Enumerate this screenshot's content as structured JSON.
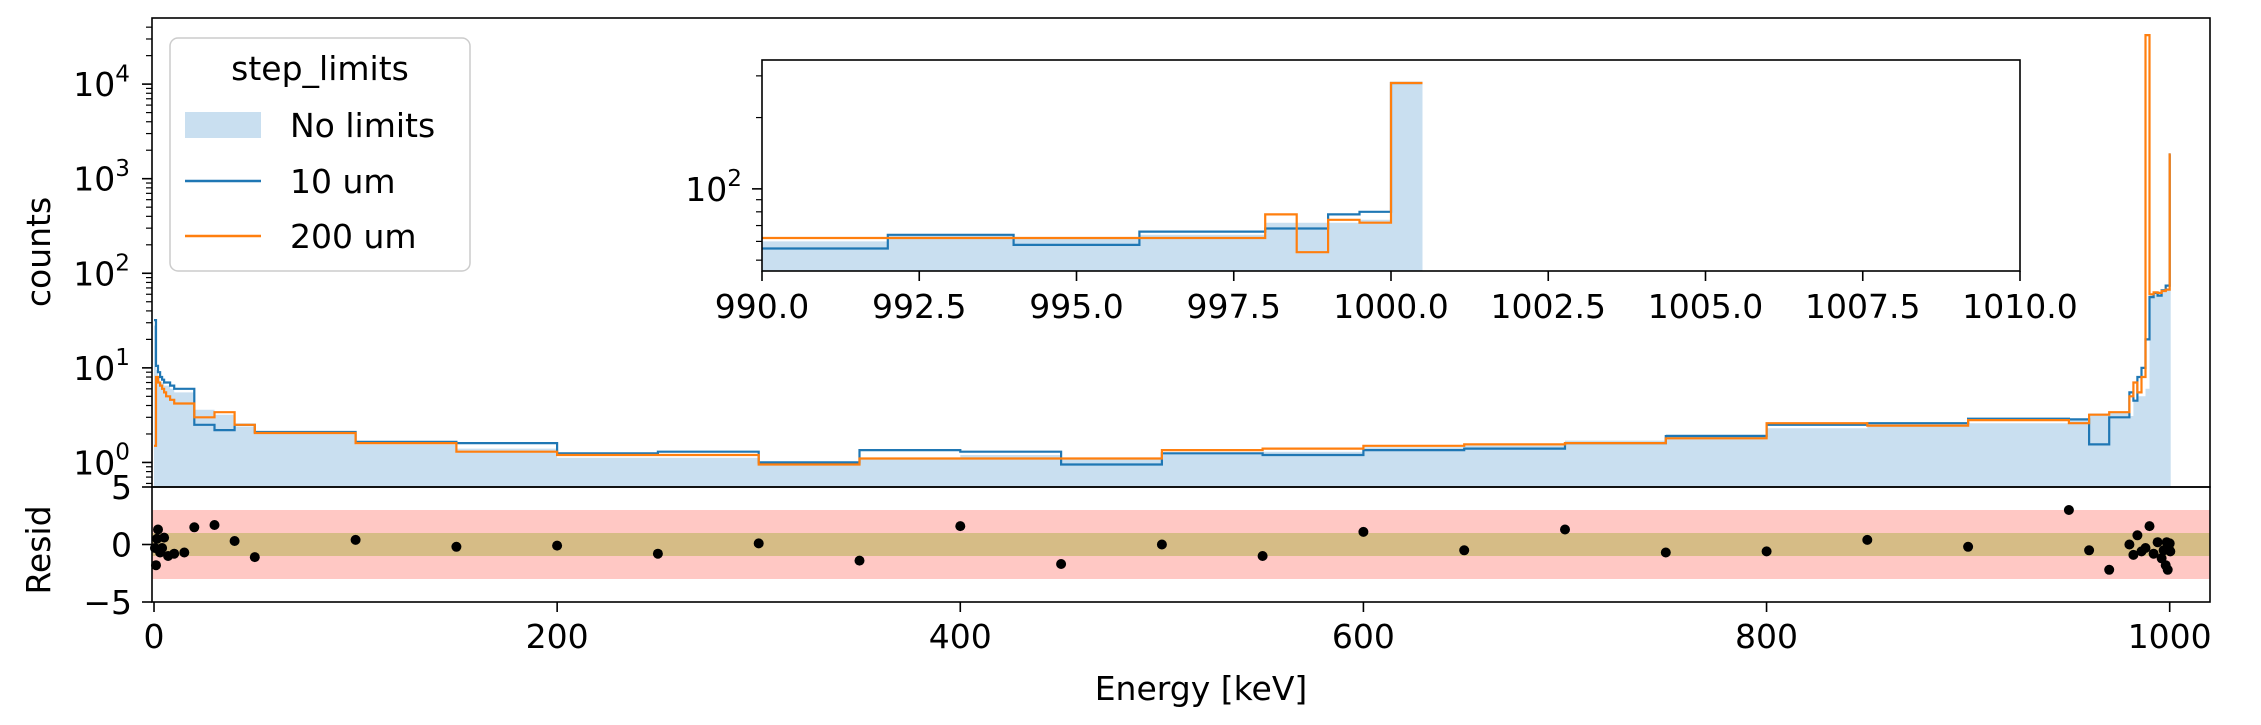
{
  "colors": {
    "no_limits_fill": "#c9dff0",
    "series_10um": "#1f77b4",
    "series_200um": "#ff7f0e",
    "band_2sigma": "#ffc8c4",
    "band_1sigma": "#d6bc86",
    "points": "#000000"
  },
  "chart_data": [
    {
      "type": "histogram",
      "panel": "main",
      "ylabel": "counts",
      "yscale": "log",
      "ylim": [
        0.55,
        50000
      ],
      "xlim": [
        -1,
        1020
      ],
      "yticks": [
        {
          "value": 1,
          "base": "10",
          "exp": "0"
        },
        {
          "value": 10,
          "base": "10",
          "exp": "1"
        },
        {
          "value": 100,
          "base": "10",
          "exp": "2"
        },
        {
          "value": 1000,
          "base": "10",
          "exp": "3"
        },
        {
          "value": 10000,
          "base": "10",
          "exp": "4"
        }
      ],
      "legend": {
        "title": "step_limits",
        "position": "top-left",
        "entries": [
          {
            "label": "No limits",
            "kind": "patch",
            "color": "#c9dff0"
          },
          {
            "label": "10 um",
            "kind": "line",
            "color": "#1f77b4"
          },
          {
            "label": "200 um",
            "kind": "line",
            "color": "#ff7f0e"
          }
        ]
      },
      "series": [
        {
          "name": "No limits",
          "style": "fill",
          "edges": [
            0,
            1,
            2,
            3,
            4,
            5,
            6,
            8,
            10,
            20,
            30,
            40,
            50,
            100,
            150,
            200,
            250,
            300,
            350,
            400,
            450,
            500,
            550,
            600,
            650,
            700,
            750,
            800,
            850,
            900,
            950,
            960,
            970,
            980,
            982,
            984,
            986,
            988,
            990,
            992,
            994,
            996,
            998,
            1000,
            1000.5
          ],
          "values": [
            28,
            9.5,
            8,
            7,
            7,
            6.5,
            6.5,
            6,
            5.5,
            3.6,
            3.2,
            2.4,
            2.0,
            1.55,
            1.4,
            1.12,
            1.12,
            0.95,
            1.1,
            1.2,
            1.12,
            1.25,
            1.3,
            1.45,
            1.5,
            1.7,
            2.0,
            2.3,
            2.5,
            2.6,
            2.9,
            3.3,
            3.4,
            3.1,
            4.5,
            5,
            5,
            6,
            60,
            64,
            62,
            68,
            70,
            1800
          ]
        },
        {
          "name": "10 um",
          "style": "step",
          "edges": [
            0,
            1,
            2,
            3,
            4,
            5,
            6,
            8,
            10,
            20,
            30,
            40,
            50,
            100,
            150,
            200,
            250,
            300,
            350,
            400,
            450,
            500,
            550,
            600,
            650,
            700,
            750,
            800,
            850,
            900,
            950,
            960,
            970,
            980,
            982,
            984,
            986,
            988,
            990,
            992,
            994,
            996,
            998,
            1000,
            1000.5
          ],
          "values": [
            32,
            10.5,
            9,
            8,
            7.5,
            7,
            7,
            6.5,
            6,
            2.5,
            2.2,
            2.5,
            2.1,
            1.65,
            1.6,
            1.25,
            1.3,
            1.0,
            1.35,
            1.3,
            0.95,
            1.25,
            1.2,
            1.35,
            1.4,
            1.6,
            1.9,
            2.5,
            2.6,
            2.9,
            2.85,
            1.55,
            3.0,
            5.5,
            4.5,
            8,
            10,
            20,
            56,
            62,
            58,
            66,
            74,
            1800
          ]
        },
        {
          "name": "200 um",
          "style": "step",
          "edges": [
            0,
            1,
            2,
            3,
            4,
            5,
            6,
            8,
            10,
            20,
            30,
            40,
            50,
            100,
            150,
            200,
            250,
            300,
            350,
            400,
            450,
            500,
            550,
            600,
            650,
            700,
            750,
            800,
            850,
            900,
            950,
            960,
            970,
            980,
            982,
            984,
            986,
            988,
            990,
            992,
            994,
            996,
            998,
            1000,
            1000.5
          ],
          "values": [
            1.5,
            8,
            7,
            6.5,
            6,
            5.5,
            5,
            4.6,
            4.2,
            3.0,
            3.4,
            2.5,
            2.05,
            1.6,
            1.3,
            1.2,
            1.2,
            0.95,
            1.1,
            1.1,
            1.1,
            1.35,
            1.4,
            1.5,
            1.55,
            1.6,
            1.8,
            2.6,
            2.45,
            2.8,
            2.6,
            3.2,
            3.4,
            5.0,
            7.0,
            5.5,
            8,
            33000,
            60,
            63,
            62,
            65,
            67,
            1800
          ]
        }
      ]
    },
    {
      "type": "histogram",
      "panel": "inset",
      "yscale": "log",
      "xlim": [
        990,
        1010
      ],
      "ylim": [
        45,
        350
      ],
      "xticks": [
        990.0,
        992.5,
        995.0,
        997.5,
        1000.0,
        1002.5,
        1005.0,
        1007.5,
        1010.0
      ],
      "xtick_labels": [
        "990.0",
        "992.5",
        "995.0",
        "997.5",
        "1000.0",
        "1002.5",
        "1005.0",
        "1007.5",
        "1010.0"
      ],
      "yticks": [
        {
          "value": 100,
          "base": "10",
          "exp": "2"
        }
      ],
      "series": [
        {
          "name": "No limits",
          "style": "fill",
          "edges": [
            990,
            992,
            994,
            996,
            998,
            998.5,
            999,
            999.5,
            1000,
            1000.5
          ],
          "values": [
            60,
            64,
            62,
            64,
            72,
            72,
            72,
            74,
            280
          ]
        },
        {
          "name": "10 um",
          "style": "step",
          "edges": [
            990,
            992,
            994,
            996,
            998,
            998.5,
            999,
            999.5,
            1000,
            1000.5
          ],
          "values": [
            56,
            64,
            58,
            66,
            68,
            68,
            78,
            80,
            280
          ]
        },
        {
          "name": "200 um",
          "style": "step",
          "edges": [
            990,
            992,
            994,
            996,
            998,
            998.5,
            999,
            999.5,
            1000,
            1000.5
          ],
          "values": [
            62,
            62,
            62,
            62,
            78,
            54,
            74,
            72,
            280
          ]
        }
      ]
    },
    {
      "type": "scatter",
      "panel": "residuals",
      "xlabel": "Energy [keV]",
      "ylabel": "Resid",
      "xlim": [
        -1,
        1020
      ],
      "ylim": [
        -5,
        5
      ],
      "xticks": [
        0,
        200,
        400,
        600,
        800,
        1000
      ],
      "yticks": [
        -5,
        0,
        5
      ],
      "ytick_labels": [
        "−5",
        "0",
        "5"
      ],
      "bands": [
        {
          "low": -3,
          "high": 3,
          "color": "#ffc8c4"
        },
        {
          "low": -1,
          "high": 1,
          "color": "#d6bc86"
        }
      ],
      "points": [
        [
          0.5,
          -0.3
        ],
        [
          1,
          -1.8
        ],
        [
          1.5,
          0.5
        ],
        [
          2,
          1.3
        ],
        [
          3,
          -0.7
        ],
        [
          4,
          -0.3
        ],
        [
          5,
          0.6
        ],
        [
          7,
          -1.0
        ],
        [
          10,
          -0.8
        ],
        [
          15,
          -0.7
        ],
        [
          20,
          1.5
        ],
        [
          30,
          1.7
        ],
        [
          40,
          0.3
        ],
        [
          50,
          -1.1
        ],
        [
          100,
          0.4
        ],
        [
          150,
          -0.2
        ],
        [
          200,
          -0.1
        ],
        [
          250,
          -0.8
        ],
        [
          300,
          0.1
        ],
        [
          350,
          -1.4
        ],
        [
          400,
          1.6
        ],
        [
          450,
          -1.7
        ],
        [
          500,
          0.0
        ],
        [
          550,
          -1.0
        ],
        [
          600,
          1.1
        ],
        [
          650,
          -0.5
        ],
        [
          700,
          1.3
        ],
        [
          750,
          -0.7
        ],
        [
          800,
          -0.6
        ],
        [
          850,
          0.4
        ],
        [
          900,
          -0.2
        ],
        [
          950,
          3.0
        ],
        [
          960,
          -0.5
        ],
        [
          970,
          -2.2
        ],
        [
          980,
          0.0
        ],
        [
          982,
          -0.9
        ],
        [
          984,
          0.8
        ],
        [
          986,
          -0.6
        ],
        [
          988,
          -0.3
        ],
        [
          990,
          1.6
        ],
        [
          992,
          -0.8
        ],
        [
          994,
          0.2
        ],
        [
          996,
          -1.2
        ],
        [
          997,
          -0.5
        ],
        [
          998,
          -1.8
        ],
        [
          998.5,
          0.2
        ],
        [
          999,
          -2.2
        ],
        [
          999.5,
          -0.3
        ],
        [
          1000,
          0.1
        ],
        [
          1000.3,
          -0.6
        ]
      ]
    }
  ]
}
